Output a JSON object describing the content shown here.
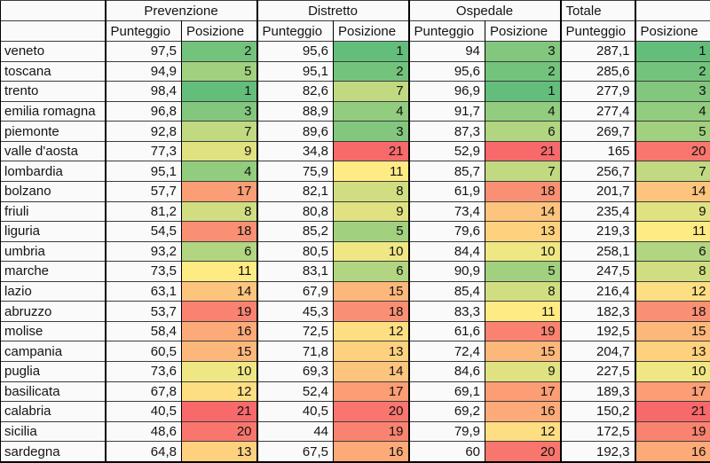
{
  "table": {
    "region_header": "",
    "groups": [
      {
        "label": "Prevenzione"
      },
      {
        "label": "Distretto"
      },
      {
        "label": "Ospedale"
      },
      {
        "label": "Totale"
      },
      {
        "label": ""
      }
    ],
    "subheaders": {
      "punteggio": "Punteggio",
      "posizione": "Posizione"
    },
    "rows": [
      {
        "region": "veneto",
        "cells": [
          [
            "97,5",
            2
          ],
          [
            "95,6",
            1
          ],
          [
            "94",
            3
          ],
          [
            "287,1",
            1
          ]
        ]
      },
      {
        "region": "toscana",
        "cells": [
          [
            "94,9",
            5
          ],
          [
            "95,1",
            2
          ],
          [
            "95,6",
            2
          ],
          [
            "285,6",
            2
          ]
        ]
      },
      {
        "region": "trento",
        "cells": [
          [
            "98,4",
            1
          ],
          [
            "82,6",
            7
          ],
          [
            "96,9",
            1
          ],
          [
            "277,9",
            3
          ]
        ]
      },
      {
        "region": "emilia romagna",
        "cells": [
          [
            "96,8",
            3
          ],
          [
            "88,9",
            4
          ],
          [
            "91,7",
            4
          ],
          [
            "277,4",
            4
          ]
        ]
      },
      {
        "region": "piemonte",
        "cells": [
          [
            "92,8",
            7
          ],
          [
            "89,6",
            3
          ],
          [
            "87,3",
            6
          ],
          [
            "269,7",
            5
          ]
        ]
      },
      {
        "region": "valle d'aosta",
        "cells": [
          [
            "77,3",
            9
          ],
          [
            "34,8",
            21
          ],
          [
            "52,9",
            21
          ],
          [
            "165",
            20
          ]
        ]
      },
      {
        "region": "lombardia",
        "cells": [
          [
            "95,1",
            4
          ],
          [
            "75,9",
            11
          ],
          [
            "85,7",
            7
          ],
          [
            "256,7",
            7
          ]
        ]
      },
      {
        "region": "bolzano",
        "cells": [
          [
            "57,7",
            17
          ],
          [
            "82,1",
            8
          ],
          [
            "61,9",
            18
          ],
          [
            "201,7",
            14
          ]
        ]
      },
      {
        "region": "friuli",
        "cells": [
          [
            "81,2",
            8
          ],
          [
            "80,8",
            9
          ],
          [
            "73,4",
            14
          ],
          [
            "235,4",
            9
          ]
        ]
      },
      {
        "region": "liguria",
        "cells": [
          [
            "54,5",
            18
          ],
          [
            "85,2",
            5
          ],
          [
            "79,6",
            13
          ],
          [
            "219,3",
            11
          ]
        ]
      },
      {
        "region": "umbria",
        "cells": [
          [
            "93,2",
            6
          ],
          [
            "80,5",
            10
          ],
          [
            "84,4",
            10
          ],
          [
            "258,1",
            6
          ]
        ]
      },
      {
        "region": "marche",
        "cells": [
          [
            "73,5",
            11
          ],
          [
            "83,1",
            6
          ],
          [
            "90,9",
            5
          ],
          [
            "247,5",
            8
          ]
        ]
      },
      {
        "region": "lazio",
        "cells": [
          [
            "63,1",
            14
          ],
          [
            "67,9",
            15
          ],
          [
            "85,4",
            8
          ],
          [
            "216,4",
            12
          ]
        ]
      },
      {
        "region": "abruzzo",
        "cells": [
          [
            "53,7",
            19
          ],
          [
            "45,3",
            18
          ],
          [
            "83,3",
            11
          ],
          [
            "182,3",
            18
          ]
        ]
      },
      {
        "region": "molise",
        "cells": [
          [
            "58,4",
            16
          ],
          [
            "72,5",
            12
          ],
          [
            "61,6",
            19
          ],
          [
            "192,5",
            15
          ]
        ]
      },
      {
        "region": "campania",
        "cells": [
          [
            "60,5",
            15
          ],
          [
            "71,8",
            13
          ],
          [
            "72,4",
            15
          ],
          [
            "204,7",
            13
          ]
        ]
      },
      {
        "region": "puglia",
        "cells": [
          [
            "73,6",
            10
          ],
          [
            "69,3",
            14
          ],
          [
            "84,6",
            9
          ],
          [
            "227,5",
            10
          ]
        ]
      },
      {
        "region": "basilicata",
        "cells": [
          [
            "67,8",
            12
          ],
          [
            "52,4",
            17
          ],
          [
            "69,1",
            17
          ],
          [
            "189,3",
            17
          ]
        ]
      },
      {
        "region": "calabria",
        "cells": [
          [
            "40,5",
            21
          ],
          [
            "40,5",
            20
          ],
          [
            "69,2",
            16
          ],
          [
            "150,2",
            21
          ]
        ]
      },
      {
        "region": "sicilia",
        "cells": [
          [
            "48,6",
            20
          ],
          [
            "44",
            19
          ],
          [
            "79,9",
            12
          ],
          [
            "172,5",
            19
          ]
        ]
      },
      {
        "region": "sardegna",
        "cells": [
          [
            "64,8",
            13
          ],
          [
            "67,5",
            16
          ],
          [
            "60",
            20
          ],
          [
            "192,3",
            16
          ]
        ]
      }
    ]
  },
  "color_scale": {
    "min_rank": 1,
    "mid_rank": 11,
    "max_rank": 21,
    "min_color": "#63BE7B",
    "mid_color": "#FFEB84",
    "max_color": "#F8696B"
  },
  "colors": {
    "grid_line": "#3d3d3d",
    "thick_border": "#000000",
    "cell_bg": "#fafafa",
    "text": "#141414"
  }
}
